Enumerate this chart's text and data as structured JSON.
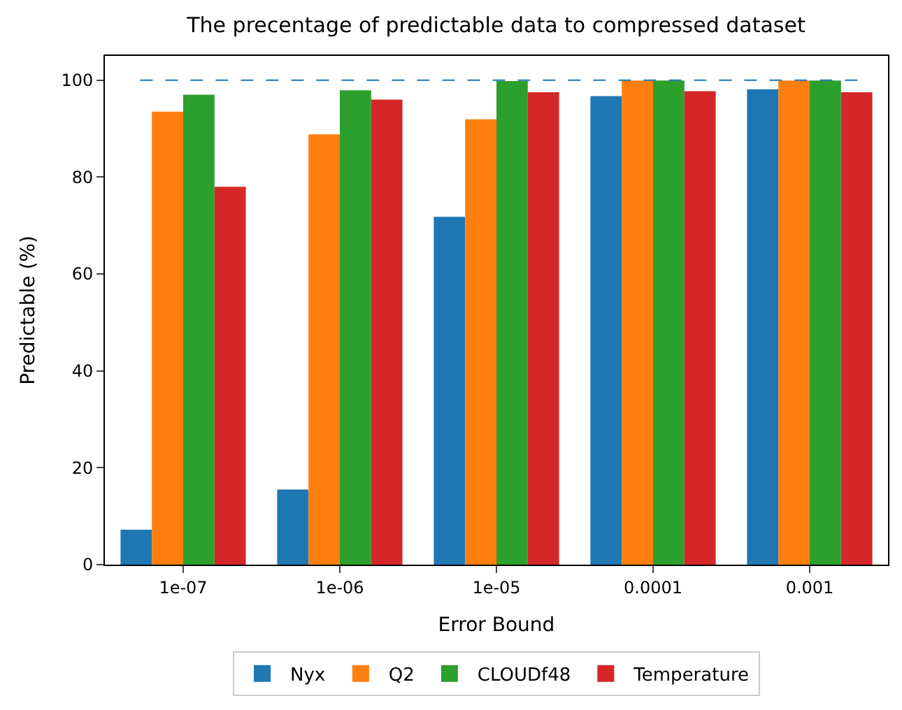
{
  "chart_data": {
    "type": "bar",
    "title": "The precentage of predictable data to compressed dataset",
    "xlabel": "Error Bound",
    "ylabel": "Predictable (%)",
    "categories": [
      "1e-07",
      "1e-06",
      "1e-05",
      "0.0001",
      "0.001"
    ],
    "series": [
      {
        "name": "Nyx",
        "color": "#1f77b4",
        "values": [
          7.2,
          15.5,
          71.8,
          96.7,
          98.1
        ]
      },
      {
        "name": "Q2",
        "color": "#ff7f0e",
        "values": [
          93.5,
          88.8,
          91.9,
          99.9,
          99.9
        ]
      },
      {
        "name": "CLOUDf48",
        "color": "#2ca02c",
        "values": [
          97.0,
          97.9,
          99.8,
          99.9,
          99.9
        ]
      },
      {
        "name": "Temperature",
        "color": "#d62728",
        "values": [
          78.0,
          96.0,
          97.5,
          97.7,
          97.5
        ]
      }
    ],
    "ylim": [
      0,
      105
    ],
    "yticks": [
      0,
      20,
      40,
      60,
      80,
      100
    ],
    "ref_lines": [
      {
        "axis": "y",
        "value": 100,
        "color": "#1f77b4",
        "line_style": "dashed"
      }
    ],
    "legend": "bottom"
  }
}
